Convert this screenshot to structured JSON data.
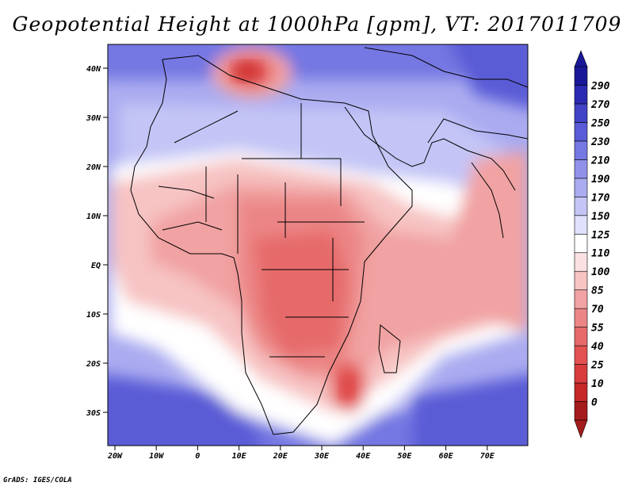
{
  "title": "Geopotential Height at 1000hPa [gpm], VT: 2017011709",
  "credit": "GrADS: IGES/COLA",
  "latitude_labels": [
    "40N",
    "30N",
    "20N",
    "10N",
    "EQ",
    "10S",
    "20S",
    "30S"
  ],
  "longitude_labels": [
    "20W",
    "10W",
    "0",
    "10E",
    "20E",
    "30E",
    "40E",
    "50E",
    "60E",
    "70E"
  ],
  "colorbar": {
    "labels": [
      "0",
      "10",
      "25",
      "40",
      "55",
      "70",
      "85",
      "100",
      "110",
      "125",
      "150",
      "170",
      "190",
      "210",
      "230",
      "250",
      "270",
      "290"
    ],
    "colors": [
      "#a51c1c",
      "#c62828",
      "#d83c3c",
      "#e35252",
      "#e66a6a",
      "#ec8686",
      "#f1a2a2",
      "#f7c3c3",
      "#fbe1e1",
      "#ffffff",
      "#dfe0fb",
      "#c4c5f6",
      "#aaabf0",
      "#9092ea",
      "#7577e2",
      "#5a5bd6",
      "#4143c6",
      "#2b2ab3",
      "#1a1899"
    ]
  },
  "chart_data": {
    "type": "heatmap",
    "variable": "Geopotential Height at 1000hPa",
    "units": "gpm",
    "valid_time": "2017011709",
    "lon_range": [
      -22,
      80
    ],
    "lat_range": [
      -37,
      45
    ],
    "levels": [
      0,
      10,
      25,
      40,
      55,
      70,
      85,
      100,
      110,
      125,
      150,
      170,
      190,
      210,
      230,
      250,
      270,
      290
    ],
    "regions": [
      {
        "name": "north-mediterranean-low",
        "value": 40
      },
      {
        "name": "central-africa-low",
        "value": 60
      },
      {
        "name": "mozambique-low",
        "value": 40
      },
      {
        "name": "southern-oceans-high",
        "value": 230
      },
      {
        "name": "arabia-high",
        "value": 170
      }
    ]
  }
}
